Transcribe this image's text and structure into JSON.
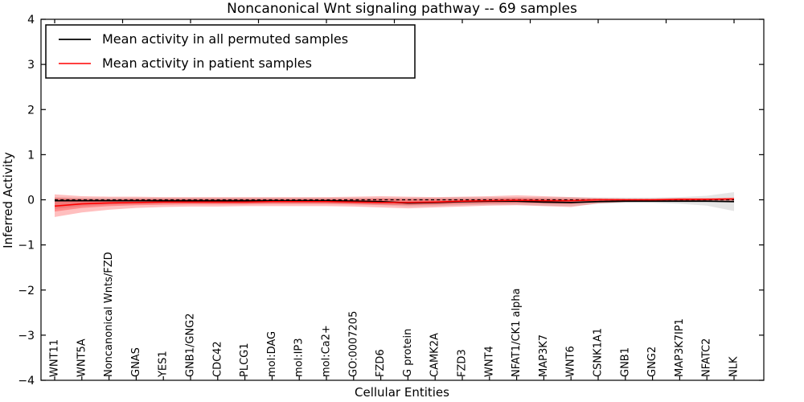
{
  "chart_data": {
    "type": "line",
    "title": "Noncanonical Wnt signaling pathway -- 69 samples",
    "xlabel": "Cellular Entities",
    "ylabel": "Inferred Activity",
    "ylim": [
      -4,
      4
    ],
    "grid": false,
    "frame": true,
    "yticks": [
      {
        "value": 4,
        "label": "4"
      },
      {
        "value": 3,
        "label": "3"
      },
      {
        "value": 2,
        "label": "2"
      },
      {
        "value": 1,
        "label": "1"
      },
      {
        "value": 0,
        "label": "0"
      },
      {
        "value": -1,
        "label": "−1"
      },
      {
        "value": -2,
        "label": "−2"
      },
      {
        "value": -3,
        "label": "−3"
      },
      {
        "value": -4,
        "label": "−4"
      }
    ],
    "top_tick_step": 2.5,
    "categories": [
      "WNT11",
      "WNT5A",
      "Noncanonical Wnts/FZD",
      "GNAS",
      "YES1",
      "GNB1/GNG2",
      "CDC42",
      "PLCG1",
      "mol:DAG",
      "mol:IP3",
      "mol:Ca2+",
      "GO:0007205",
      "FZD6",
      "G protein",
      "CAMK2A",
      "FZD3",
      "WNT4",
      "NFAT1/CK1 alpha",
      "MAP3K7",
      "WNT6",
      "CSNK1A1",
      "GNB1",
      "GNG2",
      "MAP3K7IP1",
      "NFATC2",
      "NLK"
    ],
    "series": [
      {
        "name": "Mean activity in all permuted samples",
        "color": "#000000",
        "values": [
          -0.02,
          -0.02,
          -0.02,
          -0.02,
          -0.02,
          -0.02,
          -0.02,
          -0.02,
          -0.02,
          -0.02,
          -0.02,
          -0.03,
          -0.04,
          -0.07,
          -0.06,
          -0.04,
          -0.03,
          -0.03,
          -0.05,
          -0.06,
          -0.04,
          -0.03,
          -0.03,
          -0.03,
          -0.03,
          -0.04
        ]
      },
      {
        "name": "Mean activity in patient samples",
        "color": "#ff0000",
        "values": [
          -0.14,
          -0.09,
          -0.07,
          -0.06,
          -0.05,
          -0.05,
          -0.05,
          -0.05,
          -0.04,
          -0.04,
          -0.04,
          -0.05,
          -0.06,
          -0.06,
          -0.05,
          -0.03,
          -0.02,
          -0.01,
          -0.02,
          -0.02,
          0.0,
          0.0,
          0.0,
          0.01,
          0.01,
          0.02
        ]
      }
    ],
    "bands": [
      {
        "name": "permuted-samples-range",
        "color": "#000000",
        "opacity": 0.1,
        "upper": [
          0.06,
          0.05,
          0.05,
          0.05,
          0.05,
          0.05,
          0.05,
          0.05,
          0.05,
          0.05,
          0.05,
          0.05,
          0.05,
          0.05,
          0.05,
          0.06,
          0.06,
          0.06,
          0.06,
          0.06,
          0.05,
          0.05,
          0.05,
          0.06,
          0.09,
          0.17
        ],
        "lower": [
          -0.2,
          -0.14,
          -0.11,
          -0.1,
          -0.09,
          -0.09,
          -0.09,
          -0.09,
          -0.09,
          -0.09,
          -0.09,
          -0.1,
          -0.12,
          -0.15,
          -0.14,
          -0.12,
          -0.11,
          -0.11,
          -0.13,
          -0.14,
          -0.09,
          -0.07,
          -0.07,
          -0.09,
          -0.13,
          -0.25
        ]
      },
      {
        "name": "patient-samples-range-outer",
        "color": "#ff0000",
        "opacity": 0.25,
        "upper": [
          0.12,
          0.08,
          0.07,
          0.07,
          0.06,
          0.06,
          0.06,
          0.06,
          0.06,
          0.06,
          0.06,
          0.07,
          0.08,
          0.07,
          0.06,
          0.07,
          0.08,
          0.1,
          0.08,
          0.06,
          0.04,
          0.03,
          0.03,
          0.04,
          0.04,
          0.05
        ],
        "lower": [
          -0.38,
          -0.28,
          -0.22,
          -0.18,
          -0.16,
          -0.15,
          -0.15,
          -0.14,
          -0.14,
          -0.14,
          -0.14,
          -0.15,
          -0.17,
          -0.19,
          -0.17,
          -0.15,
          -0.13,
          -0.12,
          -0.14,
          -0.16,
          -0.08,
          -0.05,
          -0.04,
          -0.04,
          -0.03,
          -0.03
        ],
        "dashes": false
      },
      {
        "name": "patient-samples-range-inner",
        "color": "#ff0000",
        "opacity": 0.28,
        "upper": [
          0.04,
          0.02,
          0.01,
          0.02,
          0.02,
          0.02,
          0.02,
          0.02,
          0.02,
          0.02,
          0.02,
          0.02,
          0.03,
          0.02,
          0.02,
          0.02,
          0.03,
          0.04,
          0.03,
          0.02,
          0.02,
          0.01,
          0.01,
          0.02,
          0.02,
          0.03
        ],
        "lower": [
          -0.26,
          -0.18,
          -0.14,
          -0.12,
          -0.11,
          -0.1,
          -0.1,
          -0.1,
          -0.09,
          -0.09,
          -0.09,
          -0.1,
          -0.11,
          -0.12,
          -0.11,
          -0.09,
          -0.08,
          -0.07,
          -0.08,
          -0.09,
          -0.04,
          -0.02,
          -0.02,
          -0.02,
          -0.01,
          -0.01
        ]
      }
    ],
    "zero_line": {
      "y": 0,
      "style": "dashed",
      "color": "#000000"
    },
    "legend": {
      "position": "upper-left",
      "items": [
        {
          "label": "Mean activity in all permuted samples",
          "color": "#000000"
        },
        {
          "label": "Mean activity in patient samples",
          "color": "#ff0000"
        }
      ]
    }
  }
}
